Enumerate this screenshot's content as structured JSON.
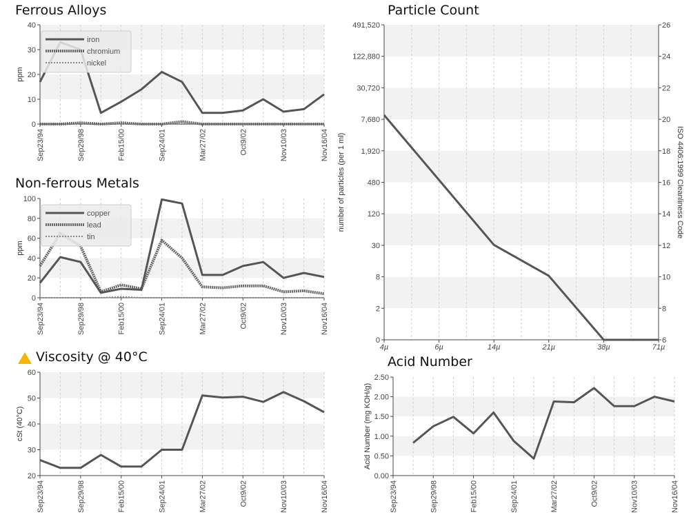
{
  "charts": {
    "ferrous": {
      "title": "Ferrous Alloys",
      "chart_data": {
        "type": "line",
        "ylabel": "ppm",
        "ylim": [
          0,
          40
        ],
        "yticks": [
          0,
          10,
          20,
          30,
          40
        ],
        "xticklabels": [
          "Sep23/94",
          "Sep29/98",
          "Feb15/00",
          "Sep24/01",
          "Mar27/02",
          "Oct9/02",
          "Nov10/03",
          "Nov16/04"
        ],
        "grid": true,
        "legend_position": "top-left",
        "series": [
          {
            "name": "iron",
            "style": "solid",
            "values": [
              17,
              33,
              30,
              4.5,
              9,
              14,
              21,
              17,
              4.5,
              4.5,
              5.5,
              10,
              5,
              6,
              12
            ]
          },
          {
            "name": "chromium",
            "style": "dense-dash",
            "values": [
              0,
              0,
              0.5,
              0,
              0.5,
              0,
              0,
              1,
              0,
              0,
              0,
              0,
              0,
              0,
              0
            ]
          },
          {
            "name": "nickel",
            "style": "light-dash",
            "values": [
              0,
              0,
              0,
              0,
              0,
              0,
              0,
              0,
              0,
              0,
              0,
              0,
              0,
              0,
              0
            ]
          }
        ]
      }
    },
    "nonferrous": {
      "title": "Non-ferrous Metals",
      "chart_data": {
        "type": "line",
        "ylabel": "ppm",
        "ylim": [
          0,
          100
        ],
        "yticks": [
          0,
          20,
          40,
          60,
          80,
          100
        ],
        "xticklabels": [
          "Sep23/94",
          "Sep29/98",
          "Feb15/00",
          "Sep24/01",
          "Mar27/02",
          "Oct9/02",
          "Nov10/03",
          "Nov16/04"
        ],
        "grid": true,
        "legend_position": "top-left",
        "series": [
          {
            "name": "copper",
            "style": "solid",
            "values": [
              15,
              41,
              36,
              5,
              9,
              8,
              99,
              95,
              23,
              23,
              32,
              36,
              20,
              25,
              21
            ]
          },
          {
            "name": "lead",
            "style": "dense-dash",
            "values": [
              32,
              65,
              52,
              6,
              13,
              9,
              58,
              40,
              11,
              10,
              12,
              12,
              6,
              7,
              4
            ]
          },
          {
            "name": "tin",
            "style": "light-dash",
            "values": [
              0,
              0,
              0,
              0,
              1,
              0,
              0,
              0,
              0,
              0,
              0,
              0,
              0,
              0,
              0
            ]
          }
        ]
      }
    },
    "viscosity": {
      "title": "Viscosity @ 40°C",
      "warning_icon": "warning-triangle",
      "warning_color": "#f2b705",
      "chart_data": {
        "type": "line",
        "ylabel": "cSt (40°C)",
        "ylim": [
          20,
          60
        ],
        "yticks": [
          20,
          30,
          40,
          50,
          60
        ],
        "xticklabels": [
          "Sep23/94",
          "Sep29/98",
          "Feb15/00",
          "Sep24/01",
          "Mar27/02",
          "Oct9/02",
          "Nov10/03",
          "Nov16/04"
        ],
        "grid": true,
        "series": [
          {
            "values": [
              26,
              23,
              23,
              28,
              23.5,
              23.5,
              30,
              30,
              51,
              50.2,
              50.5,
              48.5,
              52.3,
              48.8,
              44.5
            ]
          }
        ]
      }
    },
    "acid": {
      "title": "Acid Number",
      "chart_data": {
        "type": "line",
        "ylabel": "Acid Number (mg KOH/g)",
        "ylim": [
          0,
          2.5
        ],
        "yticks": [
          "0.00",
          "0.50",
          "1.00",
          "1.50",
          "2.00",
          "2.50"
        ],
        "xticklabels": [
          "Sep23/94",
          "Sep29/98",
          "Feb15/00",
          "Sep24/01",
          "Mar27/02",
          "Oct9/02",
          "Nov10/03",
          "Nov16/04"
        ],
        "grid": true,
        "series": [
          {
            "values": [
              null,
              0.83,
              1.25,
              1.49,
              1.07,
              1.6,
              0.88,
              0.43,
              1.88,
              1.86,
              2.22,
              1.76,
              1.76,
              2.0,
              1.88
            ]
          }
        ]
      }
    },
    "particle": {
      "title": "Particle Count",
      "chart_data": {
        "type": "line",
        "ylabel": "number of particles (per 1 ml)",
        "ylabel_right": "ISO 4406:1999 Cleanliness Code",
        "yscale": "log",
        "yticklabels": [
          "0",
          "2",
          "8",
          "30",
          "120",
          "480",
          "1,920",
          "7,680",
          "30,720",
          "122,880",
          "491,520"
        ],
        "yticklabels_right": [
          "6",
          "8",
          "10",
          "12",
          "14",
          "16",
          "18",
          "20",
          "22",
          "24",
          "26"
        ],
        "categories": [
          "4µ",
          "6µ",
          "14µ",
          "21µ",
          "38µ",
          "71µ"
        ],
        "grid": true,
        "series": [
          {
            "values": [
              7680,
              480,
              30,
              8,
              0,
              0
            ]
          }
        ]
      }
    }
  }
}
